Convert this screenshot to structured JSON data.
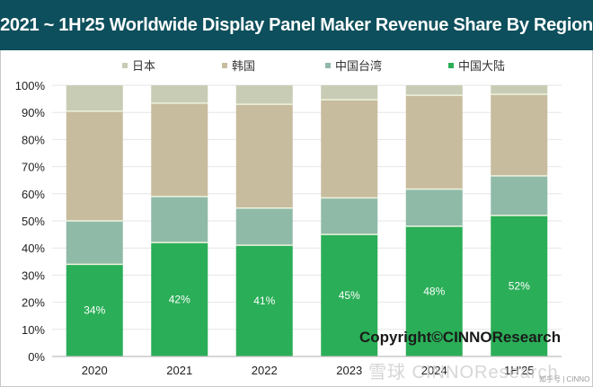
{
  "header": {
    "title": "2021 ~ 1H'25 Worldwide Display Panel Maker Revenue Share By Region"
  },
  "watermarks": {
    "copyright": "Copyright©CINNOResearch",
    "overlay": "雪球 CINNOResearch",
    "corner": "知乎号 | CINNO"
  },
  "chart_data": {
    "type": "bar",
    "stacked": true,
    "title": "2021 ~ 1H'25 Worldwide Display Panel Maker Revenue Share By Region",
    "xlabel": "",
    "ylabel": "",
    "ylim": [
      0,
      100
    ],
    "yticks": [
      "0%",
      "10%",
      "20%",
      "30%",
      "40%",
      "50%",
      "60%",
      "70%",
      "80%",
      "90%",
      "100%"
    ],
    "grid": true,
    "legend_position": "top",
    "categories": [
      "2020",
      "2021",
      "2022",
      "2023",
      "2024",
      "1H'25"
    ],
    "series": [
      {
        "name": "中国大陆",
        "color": "#2aae57",
        "values": [
          34,
          42,
          41,
          45,
          48,
          52
        ],
        "labels": [
          "34%",
          "42%",
          "41%",
          "45%",
          "48%",
          "52%"
        ]
      },
      {
        "name": "中国台湾",
        "color": "#8fbaa8",
        "values": [
          16,
          17,
          13.7,
          13.5,
          13.7,
          14.6
        ]
      },
      {
        "name": "韩国",
        "color": "#c8bc9e",
        "values": [
          40.5,
          34.4,
          38.3,
          36.2,
          34.6,
          30.1
        ]
      },
      {
        "name": "日本",
        "color": "#c8ccb4",
        "values": [
          9.5,
          6.6,
          7,
          5.3,
          3.7,
          3.3
        ]
      }
    ],
    "legend_order": [
      "日本",
      "韩国",
      "中国台湾",
      "中国大陆"
    ]
  }
}
